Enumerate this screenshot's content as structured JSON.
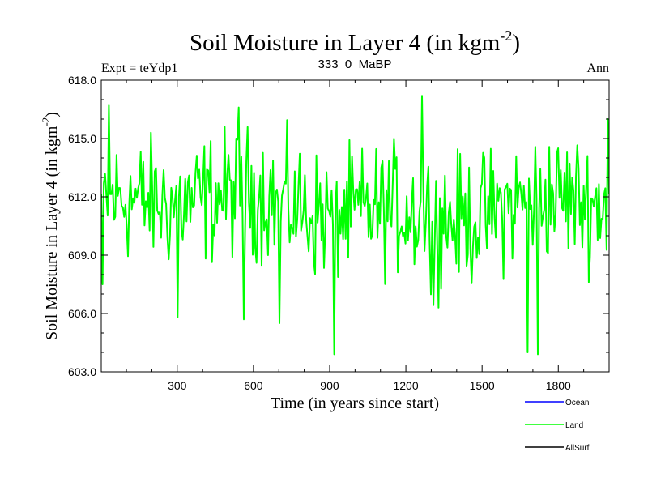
{
  "chart_data": {
    "type": "line",
    "title": "Soil Moisture in Layer 4 (in kgm",
    "title_sup": "-2",
    "title_close": ")",
    "subtitle_left": "Expt = teYdp1",
    "subtitle_center": "333_0_MaBP",
    "subtitle_right": "Ann",
    "xlabel": "Time (in years since start)",
    "ylabel": "Soil Moisture in Layer 4 (in kgm",
    "ylabel_sup": "-2",
    "ylabel_close": ")",
    "xlim": [
      1,
      2000
    ],
    "ylim": [
      603.0,
      618.0
    ],
    "xticks": [
      300,
      600,
      900,
      1200,
      1500,
      1800
    ],
    "xtick_labels": [
      "300",
      "600",
      "900",
      "1200",
      "1500",
      "1800"
    ],
    "yticks": [
      603.0,
      606.0,
      609.0,
      612.0,
      615.0,
      618.0
    ],
    "ytick_labels": [
      "603.0",
      "606.0",
      "609.0",
      "612.0",
      "615.0",
      "618.0"
    ],
    "legend": [
      {
        "name": "Ocean",
        "color": "#0000ff"
      },
      {
        "name": "Land",
        "color": "#00ff00"
      },
      {
        "name": "AllSurf",
        "color": "#000000"
      }
    ],
    "legend_position": "bottom-right",
    "series": [
      {
        "name": "Land",
        "color": "#00ff00",
        "mean": 611.5,
        "amplitude": 1.6,
        "points_count": 400,
        "notable_points": [
          {
            "x": 5,
            "y": 607.5
          },
          {
            "x": 30,
            "y": 616.7
          },
          {
            "x": 300,
            "y": 605.8
          },
          {
            "x": 540,
            "y": 616.6
          },
          {
            "x": 560,
            "y": 605.7
          },
          {
            "x": 700,
            "y": 605.5
          },
          {
            "x": 920,
            "y": 603.9
          },
          {
            "x": 1265,
            "y": 617.2
          },
          {
            "x": 1330,
            "y": 606.3
          },
          {
            "x": 1680,
            "y": 604.0
          },
          {
            "x": 1720,
            "y": 603.9
          },
          {
            "x": 1995,
            "y": 616.0
          }
        ]
      },
      {
        "name": "Ocean",
        "color": "#0000ff",
        "values": []
      },
      {
        "name": "AllSurf",
        "color": "#000000",
        "values": []
      }
    ]
  }
}
